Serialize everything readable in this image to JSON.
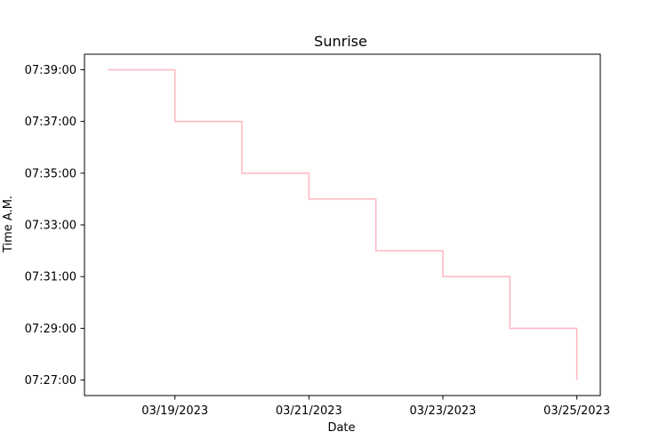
{
  "chart_data": {
    "type": "line",
    "title": "Sunrise",
    "xlabel": "Date",
    "ylabel": "Time A.M.",
    "x": [
      "03/18/2023",
      "03/19/2023",
      "03/20/2023",
      "03/21/2023",
      "03/22/2023",
      "03/23/2023",
      "03/24/2023",
      "03/25/2023"
    ],
    "series": [
      {
        "values": [
          "07:39:00",
          "07:37:00",
          "07:35:00",
          "07:34:00",
          "07:32:00",
          "07:31:00",
          "07:29:00",
          "07:27:00"
        ],
        "color": "#ffb6c1",
        "drawstyle": "steps-post"
      }
    ],
    "xlim": [
      "03/18/2023",
      "03/25/2023"
    ],
    "ylim": [
      "07:27:00",
      "07:39:00"
    ],
    "xticks": [
      "03/19/2023",
      "03/21/2023",
      "03/23/2023",
      "03/25/2023"
    ],
    "yticks": [
      "07:27:00",
      "07:29:00",
      "07:31:00",
      "07:33:00",
      "07:35:00",
      "07:37:00",
      "07:39:00"
    ],
    "grid": false,
    "legend": "none"
  }
}
